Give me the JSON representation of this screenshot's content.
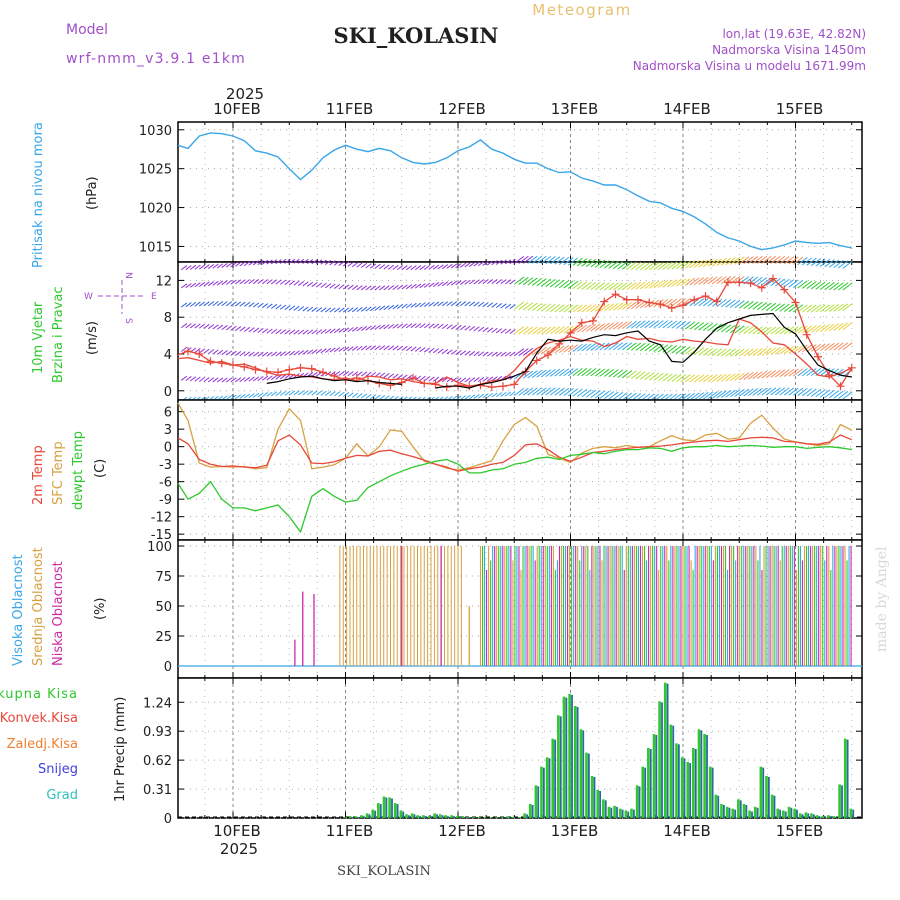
{
  "header": {
    "model_label": "Model",
    "model_name": "wrf-nmm_v3.9.1 e1km",
    "title": "SKI_KOLASIN",
    "meteogram_label": "Meteogram",
    "lonlat": "lon,lat (19.63E, 42.82N)",
    "altitude": "Nadmorska Visina 1450m",
    "model_altitude": "Nadmorska Visina u modelu 1671.99m",
    "footer_station": "SKI_KOLASIN",
    "watermark": "made by Angel"
  },
  "colors": {
    "pressure": "#3aa6e8",
    "temp2m": "#e8483a",
    "sfc_temp": "#d8a040",
    "dewpt": "#2ec82e",
    "cloud_high": "#3aa6e8",
    "cloud_mid": "#d8a040",
    "cloud_low": "#cc2aa0",
    "precip_total": "#2ec82e",
    "precip_conv": "#e8483a",
    "precip_frz": "#f08030",
    "precip_snow": "#4040e0",
    "precip_grad": "#30c0c0",
    "wind_label": "#2ec82e"
  },
  "time_axis": {
    "year": "2025",
    "days": [
      "10FEB",
      "11FEB",
      "12FEB",
      "13FEB",
      "14FEB",
      "15FEB"
    ],
    "start_day_offset": -0.5,
    "end_day_offset": 5.55
  },
  "chart_data": [
    {
      "type": "line",
      "panel": "pressure",
      "ylabel_rot": "Pritisak na nivou mora",
      "unit": "(hPa)",
      "ylim": [
        1013,
        1031
      ],
      "yticks": [
        "1015",
        "1020",
        "1025",
        "1030"
      ],
      "x": [
        -0.5,
        -0.4,
        -0.3,
        -0.2,
        -0.1,
        0,
        0.1,
        0.2,
        0.3,
        0.4,
        0.5,
        0.6,
        0.7,
        0.8,
        0.9,
        1.0,
        1.1,
        1.2,
        1.3,
        1.4,
        1.5,
        1.6,
        1.7,
        1.8,
        1.9,
        2.0,
        2.1,
        2.2,
        2.3,
        2.4,
        2.5,
        2.6,
        2.7,
        2.8,
        2.9,
        3.0,
        3.1,
        3.2,
        3.3,
        3.4,
        3.5,
        3.6,
        3.7,
        3.8,
        3.9,
        4.0,
        4.1,
        4.2,
        4.3,
        4.4,
        4.5,
        4.6,
        4.7,
        4.8,
        4.9,
        5.0,
        5.1,
        5.2,
        5.3,
        5.4,
        5.5
      ],
      "values": [
        1028,
        1027.6,
        1029.2,
        1029.6,
        1029.5,
        1029.2,
        1028.6,
        1027.3,
        1027.0,
        1026.5,
        1025.0,
        1023.6,
        1024.8,
        1026.4,
        1027.4,
        1028.0,
        1027.5,
        1027.2,
        1027.6,
        1027.3,
        1026.4,
        1025.8,
        1025.6,
        1025.8,
        1026.4,
        1027.3,
        1027.8,
        1028.7,
        1027.5,
        1027.0,
        1026.2,
        1025.7,
        1025.7,
        1025.0,
        1024.5,
        1024.6,
        1023.8,
        1023.4,
        1022.9,
        1022.9,
        1022.3,
        1021.5,
        1020.8,
        1020.6,
        1019.9,
        1019.5,
        1018.8,
        1017.9,
        1016.8,
        1016.1,
        1015.7,
        1015.0,
        1014.6,
        1014.8,
        1015.2,
        1015.7,
        1015.5,
        1015.4,
        1015.5,
        1015.1,
        1014.8
      ]
    },
    {
      "type": "line",
      "panel": "wind",
      "ylabel_rot_1": "10m Vjetar",
      "ylabel_rot_2": "Brzina i Pravac",
      "unit": "(m/s)",
      "compass_n": "N",
      "compass_e": "E",
      "compass_s": "S",
      "compass_w": "W",
      "ylim": [
        -1,
        14
      ],
      "yticks": [
        "0",
        "4",
        "8",
        "12"
      ],
      "x": [
        -0.5,
        -0.4,
        -0.3,
        -0.2,
        -0.1,
        0,
        0.1,
        0.2,
        0.3,
        0.4,
        0.5,
        0.6,
        0.7,
        0.8,
        0.9,
        1.0,
        1.1,
        1.2,
        1.3,
        1.4,
        1.5,
        1.6,
        1.7,
        1.8,
        1.9,
        2.0,
        2.1,
        2.2,
        2.3,
        2.4,
        2.5,
        2.6,
        2.7,
        2.8,
        2.9,
        3.0,
        3.1,
        3.2,
        3.3,
        3.4,
        3.5,
        3.6,
        3.7,
        3.8,
        3.9,
        4.0,
        4.1,
        4.2,
        4.3,
        4.4,
        4.5,
        4.6,
        4.7,
        4.8,
        4.9,
        5.0,
        5.1,
        5.2,
        5.3,
        5.4,
        5.5
      ],
      "series": [
        {
          "key": "speed",
          "values": [
            3.5,
            3.6,
            3.3,
            3.0,
            3.2,
            2.8,
            2.9,
            2.5,
            2.0,
            1.7,
            1.8,
            1.6,
            1.5,
            1.3,
            1.2,
            1.4,
            1.1,
            1.6,
            1.5,
            1.2,
            1.3,
            1.0,
            0.8,
            0.8,
            1.5,
            0.9,
            0.5,
            0.7,
            1.1,
            1.2,
            2.2,
            3.6,
            4.6,
            5.2,
            5.5,
            5.9,
            5.5,
            5.4,
            4.8,
            5.2,
            5.9,
            5.6,
            5.7,
            5.4,
            5.3,
            5.6,
            5.4,
            5.3,
            5.1,
            5.0,
            7.8,
            7.4,
            6.4,
            5.2,
            5.0,
            4.0,
            2.9,
            1.7,
            1.5,
            1.9,
            2.5
          ]
        },
        {
          "key": "gust",
          "values": [
            3.9,
            4.3,
            4.0,
            3.2,
            3.0,
            2.8,
            2.6,
            2.3,
            2.1,
            2.0,
            2.3,
            2.5,
            2.4,
            2.0,
            1.6,
            1.2,
            1.4,
            1.1,
            0.8,
            0.6,
            0.9,
            1.4,
            0.8,
            0.7,
            0.4,
            0.6,
            0.5,
            0.6,
            0.4,
            0.5,
            0.7,
            2.1,
            3.3,
            3.9,
            5.1,
            6.3,
            7.4,
            7.6,
            9.7,
            10.5,
            9.9,
            9.9,
            9.6,
            9.4,
            9.0,
            9.3,
            9.9,
            10.3,
            9.7,
            11.8,
            11.8,
            11.7,
            11.2,
            12.2,
            11.0,
            9.6,
            6.1,
            3.7,
            1.7,
            0.5,
            2.5
          ]
        },
        {
          "key": "black",
          "values": [
            null,
            null,
            null,
            null,
            null,
            null,
            null,
            null,
            0.8,
            1.0,
            1.3,
            1.5,
            1.6,
            1.3,
            1.1,
            1.2,
            1.0,
            1.1,
            0.9,
            0.8,
            0.7,
            null,
            null,
            0.3,
            0.5,
            0.5,
            0.3,
            0.7,
            0.9,
            1.2,
            1.6,
            2.1,
            4.1,
            5.6,
            5.4,
            5.5,
            5.4,
            5.8,
            6.1,
            6.0,
            6.3,
            6.5,
            5.4,
            5.0,
            3.2,
            3.1,
            4.2,
            5.6,
            6.8,
            7.4,
            7.8,
            8.2,
            8.3,
            8.4,
            6.9,
            6.2,
            4.4,
            2.8,
            2.2,
            1.7,
            1.5
          ]
        }
      ]
    },
    {
      "type": "line",
      "panel": "temperature",
      "ylabel_rot_1": "2m Temp",
      "ylabel_rot_2": "SFC Temp",
      "ylabel_rot_3": "dewpt Temp",
      "unit": "(C)",
      "ylim": [
        -16,
        8
      ],
      "yticks": [
        "6",
        "3",
        "0",
        "-3",
        "-6",
        "-9",
        "-12",
        "-15"
      ],
      "x": [
        -0.5,
        -0.4,
        -0.3,
        -0.2,
        -0.1,
        0,
        0.1,
        0.2,
        0.3,
        0.4,
        0.5,
        0.6,
        0.7,
        0.8,
        0.9,
        1.0,
        1.1,
        1.2,
        1.3,
        1.4,
        1.5,
        1.6,
        1.7,
        1.8,
        1.9,
        2.0,
        2.1,
        2.2,
        2.3,
        2.4,
        2.5,
        2.6,
        2.7,
        2.8,
        2.9,
        3.0,
        3.1,
        3.2,
        3.3,
        3.4,
        3.5,
        3.6,
        3.7,
        3.8,
        3.9,
        4.0,
        4.1,
        4.2,
        4.3,
        4.4,
        4.5,
        4.6,
        4.7,
        4.8,
        4.9,
        5.0,
        5.1,
        5.2,
        5.3,
        5.4,
        5.5
      ],
      "series": [
        {
          "key": "t2m",
          "values": [
            1.5,
            0.5,
            -2.2,
            -3.0,
            -3.4,
            -3.3,
            -3.5,
            -3.6,
            -3.2,
            1.0,
            2.0,
            0.3,
            -2.8,
            -2.9,
            -2.6,
            -2.0,
            -1.5,
            -1.6,
            -0.8,
            -0.6,
            -1.2,
            -1.7,
            -2.3,
            -3.0,
            -3.5,
            -4.2,
            -3.8,
            -3.5,
            -3.0,
            -2.7,
            -1.5,
            0.3,
            0.5,
            -0.5,
            -1.8,
            -2.5,
            -1.8,
            -1.0,
            -0.8,
            -0.5,
            -0.3,
            -0.1,
            0.0,
            0.1,
            0.3,
            0.6,
            0.8,
            1.0,
            1.1,
            0.9,
            1.2,
            1.5,
            1.6,
            1.5,
            0.9,
            0.8,
            0.5,
            0.4,
            0.8,
            2.0,
            1.2
          ]
        },
        {
          "key": "sfc",
          "values": [
            7.5,
            4.5,
            -2.8,
            -3.5,
            -3.4,
            -3.5,
            -3.4,
            -3.8,
            -3.6,
            3.0,
            6.5,
            4.5,
            -3.8,
            -3.5,
            -3.1,
            -2.0,
            0.5,
            -1.6,
            0.0,
            2.9,
            2.6,
            0.0,
            -2.5,
            -3.0,
            -3.7,
            -4.0,
            -3.6,
            -3.0,
            -2.4,
            1.0,
            3.8,
            5.0,
            3.5,
            -1.3,
            -2.0,
            -2.7,
            -1.1,
            -0.3,
            0.0,
            -0.2,
            0.2,
            -0.1,
            0.0,
            1.0,
            1.9,
            1.2,
            1.0,
            2.0,
            2.3,
            1.3,
            1.5,
            4.0,
            5.4,
            3.2,
            1.3,
            0.8,
            0.5,
            0.2,
            0.5,
            3.8,
            2.8
          ]
        },
        {
          "key": "dewpt",
          "values": [
            -6.3,
            -9.0,
            -8.0,
            -6.0,
            -9.0,
            -10.5,
            -10.5,
            -11.0,
            -10.5,
            -10.0,
            -12.0,
            -14.6,
            -8.5,
            -7.2,
            -8.5,
            -9.5,
            -9.2,
            -7.0,
            -6.0,
            -5.0,
            -4.2,
            -3.5,
            -3.0,
            -2.5,
            -2.2,
            -3.0,
            -4.5,
            -4.5,
            -4.0,
            -3.8,
            -3.0,
            -2.7,
            -2.0,
            -1.8,
            -2.2,
            -1.5,
            -1.3,
            -1.0,
            -1.2,
            -0.8,
            -0.5,
            -0.5,
            -0.2,
            -0.3,
            -0.8,
            -0.2,
            0.0,
            0.0,
            0.2,
            0.0,
            0.1,
            0.2,
            0.1,
            -0.1,
            0.0,
            0.0,
            -0.3,
            -0.1,
            0.0,
            -0.2,
            -0.5
          ]
        }
      ]
    },
    {
      "type": "bar",
      "panel": "clouds",
      "ylabel_rot_1": "Visoka Oblacnost",
      "ylabel_rot_2": "Srednja Oblacnost",
      "ylabel_rot_3": "Niska Oblacnost",
      "unit": "(%)",
      "ylim": [
        -10,
        105
      ],
      "yticks": [
        "0",
        "25",
        "50",
        "75",
        "100"
      ],
      "segments": [
        {
          "series": "low",
          "x0": 0.55,
          "x1": 0.56,
          "values": [
            22
          ]
        },
        {
          "series": "low",
          "x0": 0.62,
          "x1": 0.63,
          "values": [
            62
          ]
        },
        {
          "series": "low",
          "x0": 0.72,
          "x1": 0.73,
          "values": [
            60
          ]
        },
        {
          "series": "mid",
          "x0": 0.95,
          "x1": 2.05,
          "values": [
            100
          ]
        },
        {
          "series": "low",
          "x0": 1.5,
          "x1": 1.52,
          "values": [
            100
          ]
        },
        {
          "series": "low",
          "x0": 1.85,
          "x1": 1.87,
          "values": [
            100
          ]
        },
        {
          "series": "mid",
          "x0": 2.1,
          "x1": 2.2,
          "values": [
            50
          ]
        },
        {
          "series": "all",
          "x0": 2.2,
          "x1": 5.5,
          "values": [
            100
          ]
        }
      ]
    },
    {
      "type": "bar",
      "panel": "precip",
      "ylabel_rot": "1hr Precip (mm)",
      "ylim": [
        0,
        1.5
      ],
      "yticks": [
        "0",
        "0.31",
        "0.62",
        "0.93",
        "1.24"
      ],
      "legend": [
        "Ukupna Kisa",
        "Konvek.Kisa",
        "Zaledj.Kisa",
        "Snijeg",
        "Grad"
      ],
      "x": [
        1.0,
        1.05,
        1.1,
        1.15,
        1.2,
        1.25,
        1.3,
        1.35,
        1.4,
        1.45,
        1.5,
        1.55,
        1.6,
        1.65,
        1.7,
        1.75,
        1.8,
        1.85,
        1.9,
        1.95,
        2.0,
        2.05,
        2.1,
        2.15,
        2.2,
        2.25,
        2.3,
        2.35,
        2.4,
        2.45,
        2.5,
        2.55,
        2.6,
        2.65,
        2.7,
        2.75,
        2.8,
        2.85,
        2.9,
        2.95,
        3.0,
        3.05,
        3.1,
        3.15,
        3.2,
        3.25,
        3.3,
        3.35,
        3.4,
        3.45,
        3.5,
        3.55,
        3.6,
        3.65,
        3.7,
        3.75,
        3.8,
        3.85,
        3.9,
        3.95,
        4.0,
        4.05,
        4.1,
        4.15,
        4.2,
        4.25,
        4.3,
        4.35,
        4.4,
        4.45,
        4.5,
        4.55,
        4.6,
        4.65,
        4.7,
        4.75,
        4.8,
        4.85,
        4.9,
        4.95,
        5.0,
        5.05,
        5.1,
        5.15,
        5.2,
        5.25,
        5.3,
        5.35,
        5.4,
        5.45,
        5.5
      ],
      "values": [
        0.01,
        0.02,
        0.02,
        0.03,
        0.05,
        0.09,
        0.16,
        0.23,
        0.22,
        0.16,
        0.08,
        0.04,
        0.05,
        0.03,
        0.03,
        0.02,
        0.05,
        0.04,
        0.03,
        0.03,
        0.02,
        0.02,
        0.01,
        0.01,
        0.01,
        0.01,
        0.01,
        0.01,
        0.01,
        0.02,
        0.01,
        0.01,
        0.05,
        0.15,
        0.35,
        0.55,
        0.65,
        0.85,
        1.1,
        1.3,
        1.33,
        1.2,
        0.95,
        0.7,
        0.45,
        0.3,
        0.2,
        0.12,
        0.13,
        0.1,
        0.08,
        0.1,
        0.35,
        0.55,
        0.75,
        0.9,
        1.25,
        1.45,
        1.0,
        0.8,
        0.65,
        0.6,
        0.75,
        0.95,
        0.9,
        0.55,
        0.25,
        0.15,
        0.12,
        0.1,
        0.2,
        0.15,
        0.08,
        0.12,
        0.55,
        0.45,
        0.25,
        0.1,
        0.08,
        0.12,
        0.1,
        0.05,
        0.06,
        0.05,
        0.03,
        0.02,
        0.03,
        0.02,
        0.36,
        0.85,
        0.1
      ]
    }
  ]
}
